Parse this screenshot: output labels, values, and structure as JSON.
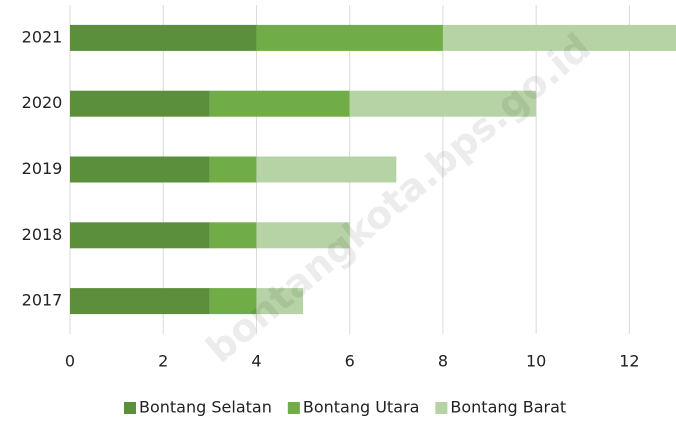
{
  "chart_data": {
    "type": "stacked_barh",
    "categories": [
      "2021",
      "2020",
      "2019",
      "2018",
      "2017"
    ],
    "series": [
      {
        "name": "Bontang Selatan",
        "color": "#5b8f3b",
        "values": [
          4,
          3,
          3,
          3,
          3
        ]
      },
      {
        "name": "Bontang Utara",
        "color": "#70ad47",
        "values": [
          4,
          3,
          1,
          1,
          1
        ]
      },
      {
        "name": "Bontang Barat",
        "color": "#b5d3a4",
        "values": [
          5,
          4,
          3,
          2,
          1
        ]
      }
    ],
    "xlim": [
      0,
      13
    ],
    "xticks": [
      0,
      2,
      4,
      6,
      8,
      10,
      12
    ],
    "grid": true,
    "legend": "bottom",
    "watermark": "bontangkota.bps.go.id"
  }
}
